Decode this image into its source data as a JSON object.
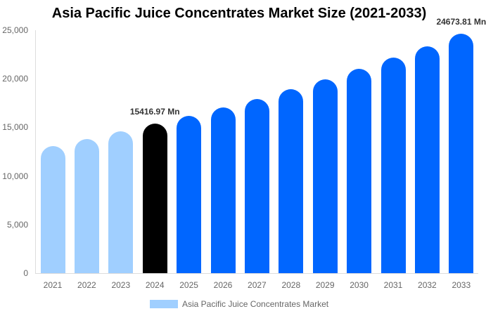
{
  "chart_data": {
    "type": "bar",
    "title": "Asia Pacific Juice Concentrates Market Size (2021-2033)",
    "xlabel": "",
    "ylabel": "",
    "ylim": [
      0,
      25000
    ],
    "yticks": [
      "0",
      "5,000",
      "10,000",
      "15,000",
      "20,000",
      "25,000"
    ],
    "grid": false,
    "legend_position": "bottom",
    "categories": [
      "2021",
      "2022",
      "2023",
      "2024",
      "2025",
      "2026",
      "2027",
      "2028",
      "2029",
      "2030",
      "2031",
      "2032",
      "2033"
    ],
    "series": [
      {
        "name": "Asia Pacific Juice Concentrates Market",
        "values": [
          13100,
          13800,
          14600,
          15416.97,
          16190,
          17050,
          17920,
          18930,
          19940,
          21030,
          22180,
          23340,
          24673.81
        ]
      }
    ],
    "bar_colors": [
      "#a0cfff",
      "#a0cfff",
      "#a0cfff",
      "#000000",
      "#0066ff",
      "#0066ff",
      "#0066ff",
      "#0066ff",
      "#0066ff",
      "#0066ff",
      "#0066ff",
      "#0066ff",
      "#0066ff"
    ],
    "annotations": [
      {
        "category": "2024",
        "text": "15416.97 Mn"
      },
      {
        "category": "2033",
        "text": "24673.81 Mn"
      }
    ]
  },
  "legend": {
    "label": "Asia Pacific Juice Concentrates Market",
    "color": "#a0cfff"
  }
}
